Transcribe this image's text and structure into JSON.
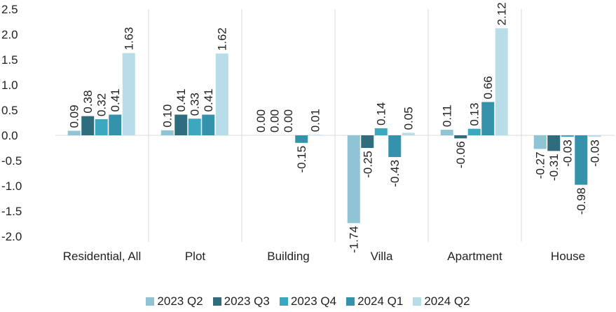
{
  "chart_data": {
    "type": "bar",
    "categories": [
      "Residential, All",
      "Plot",
      "Building",
      "Villa",
      "Apartment",
      "House"
    ],
    "series": [
      {
        "name": "2023 Q2",
        "color": "#8ec4d3",
        "values": [
          0.09,
          0.1,
          0,
          -1.74,
          0.11,
          -0.27
        ],
        "value_labels": [
          "0.09",
          "0.10",
          "0.00",
          "-1.74",
          "0.11",
          "-0.27"
        ]
      },
      {
        "name": "2023 Q3",
        "color": "#2f6d7e",
        "values": [
          0.38,
          0.41,
          0,
          -0.25,
          -0.06,
          -0.31
        ],
        "value_labels": [
          "0.38",
          "0.41",
          "0.00",
          "-0.25",
          "-0.06",
          "-0.31"
        ]
      },
      {
        "name": "2023 Q4",
        "color": "#3ba8c0",
        "values": [
          0.32,
          0.33,
          0,
          0.14,
          0.13,
          -0.03
        ],
        "value_labels": [
          "0.32",
          "0.33",
          "0.00",
          "0.14",
          "0.13",
          "-0.03"
        ]
      },
      {
        "name": "2024 Q1",
        "color": "#3493aa",
        "values": [
          0.41,
          0.41,
          -0.15,
          -0.43,
          0.66,
          -0.98
        ],
        "value_labels": [
          "0.41",
          "0.41",
          "-0.15",
          "-0.43",
          "0.66",
          "-0.98"
        ]
      },
      {
        "name": "2024 Q2",
        "color": "#b8dce8",
        "values": [
          1.63,
          1.62,
          0.01,
          0.05,
          2.12,
          -0.03
        ],
        "value_labels": [
          "1.63",
          "1.62",
          "0.01",
          "0.05",
          "2.12",
          "-0.03"
        ]
      }
    ],
    "ylim": [
      -2.0,
      2.5
    ],
    "yticks": [
      {
        "value": -2.0,
        "label": "-2.0"
      },
      -1.5,
      {
        "value": -1.0,
        "label": "-1.0"
      },
      -0.5,
      {
        "value": 0,
        "label": "0.0"
      },
      0.5,
      {
        "value": 1.0,
        "label": "1.0"
      },
      1.5,
      {
        "value": 2.0,
        "label": "2.0"
      },
      2.5
    ],
    "legend": "bottom"
  }
}
